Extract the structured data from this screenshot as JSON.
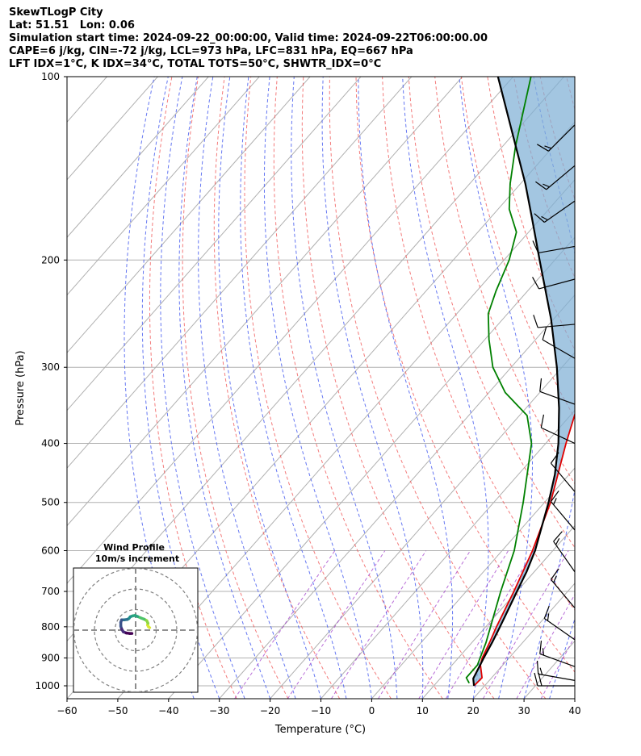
{
  "header": {
    "title": "SkewTLogP City",
    "location": "Lat: 51.51   Lon: 0.06",
    "times": "Simulation start time: 2024-09-22_00:00:00, Valid time: 2024-09-22T06:00:00.00",
    "indices1": "CAPE=6 j/kg, CIN=-72 j/kg, LCL=973 hPa, LFC=831 hPa, EQ=667 hPa",
    "indices2": "LFT IDX=1°C, K IDX=34°C, TOTAL TOTS=50°C, SHWTR_IDX=0°C"
  },
  "chart_data": {
    "type": "line",
    "xlabel": "Temperature (°C)",
    "ylabel": "Pressure (hPa)",
    "xlim": [
      -60,
      40
    ],
    "plim": [
      1050,
      100
    ],
    "xticks": [
      "−60",
      "−50",
      "−40",
      "−30",
      "−20",
      "−10",
      "0",
      "10",
      "20",
      "30",
      "40"
    ],
    "xtick_values": [
      -60,
      -50,
      -40,
      -30,
      -20,
      -10,
      0,
      10,
      20,
      30,
      40
    ],
    "yticks": [
      "100",
      "200",
      "300",
      "400",
      "500",
      "600",
      "700",
      "800",
      "900",
      "1000"
    ],
    "ytick_values": [
      100,
      200,
      300,
      400,
      500,
      600,
      700,
      800,
      900,
      1000
    ],
    "log_pressure_axis": true,
    "grid": true,
    "series": [
      {
        "role": "temperature",
        "color": "#e00000",
        "points": [
          [
            1000,
            17.9
          ],
          [
            970,
            18.1
          ],
          [
            925,
            15.6
          ],
          [
            900,
            14.7
          ],
          [
            850,
            13.5
          ],
          [
            800,
            12.1
          ],
          [
            700,
            9.4
          ],
          [
            600,
            6.0
          ],
          [
            500,
            1.2
          ],
          [
            450,
            -2.2
          ],
          [
            400,
            -6.0
          ],
          [
            350,
            -10.0
          ],
          [
            300,
            -14.2
          ],
          [
            275,
            -16.9
          ],
          [
            250,
            -21.8
          ],
          [
            230,
            -23.6
          ],
          [
            210,
            -24.8
          ],
          [
            200,
            -25.6
          ],
          [
            180,
            -28.8
          ],
          [
            160,
            -33.2
          ],
          [
            140,
            -37.6
          ],
          [
            120,
            -41.6
          ],
          [
            100,
            -47.8
          ]
        ]
      },
      {
        "role": "dewpoint",
        "color": "#008000",
        "points": [
          [
            990,
            16.5
          ],
          [
            970,
            15.0
          ],
          [
            925,
            15.0
          ],
          [
            850,
            12.8
          ],
          [
            700,
            6.8
          ],
          [
            600,
            2.4
          ],
          [
            500,
            -4.2
          ],
          [
            400,
            -12.8
          ],
          [
            360,
            -18.5
          ],
          [
            330,
            -26.8
          ],
          [
            300,
            -33.6
          ],
          [
            270,
            -39.2
          ],
          [
            245,
            -43.8
          ],
          [
            225,
            -46.2
          ],
          [
            200,
            -49.0
          ],
          [
            180,
            -52.4
          ],
          [
            165,
            -57.8
          ],
          [
            150,
            -62.0
          ],
          [
            130,
            -67.5
          ],
          [
            100,
            -76.5
          ]
        ]
      },
      {
        "role": "parcel",
        "color": "#000000",
        "points": [
          [
            1000,
            17.9
          ],
          [
            973,
            16.5
          ],
          [
            900,
            15.0
          ],
          [
            850,
            14.0
          ],
          [
            800,
            12.8
          ],
          [
            700,
            10.0
          ],
          [
            650,
            8.5
          ],
          [
            600,
            6.5
          ],
          [
            500,
            0.8
          ],
          [
            450,
            -2.8
          ],
          [
            400,
            -7.5
          ],
          [
            350,
            -13.5
          ],
          [
            300,
            -21.0
          ],
          [
            250,
            -30.5
          ],
          [
            200,
            -43.0
          ],
          [
            170,
            -52.0
          ],
          [
            150,
            -59.0
          ],
          [
            100,
            -83.0
          ]
        ]
      }
    ],
    "inset": {
      "title1": "Wind Profile",
      "title2": "10m/s increment",
      "rings_ms": [
        10,
        20,
        30
      ],
      "hodograph_uv": [
        [
          6.8,
          1.2
        ],
        [
          6.2,
          1.7
        ],
        [
          5.8,
          2.5
        ],
        [
          6.0,
          3.3
        ],
        [
          5.4,
          4.6
        ],
        [
          4.2,
          5.3
        ],
        [
          2.6,
          5.9
        ],
        [
          1.0,
          6.6
        ],
        [
          -0.3,
          7.1
        ],
        [
          -1.5,
          6.9
        ],
        [
          -2.6,
          6.5
        ],
        [
          -3.2,
          5.7
        ],
        [
          -4.0,
          5.2
        ],
        [
          -5.6,
          5.0
        ],
        [
          -6.8,
          5.0
        ],
        [
          -7.2,
          3.8
        ],
        [
          -7.2,
          1.9
        ],
        [
          -6.8,
          0.6
        ],
        [
          -6.0,
          -0.8
        ],
        [
          -4.5,
          -1.4
        ],
        [
          -2.8,
          -1.6
        ],
        [
          -1.8,
          -1.6
        ]
      ]
    },
    "barbs": [
      {
        "p": 120,
        "speed_kt": 15,
        "dir_deg": 225
      },
      {
        "p": 140,
        "speed_kt": 15,
        "dir_deg": 230
      },
      {
        "p": 160,
        "speed_kt": 15,
        "dir_deg": 235
      },
      {
        "p": 190,
        "speed_kt": 10,
        "dir_deg": 260
      },
      {
        "p": 215,
        "speed_kt": 10,
        "dir_deg": 255
      },
      {
        "p": 255,
        "speed_kt": 10,
        "dir_deg": 265
      },
      {
        "p": 290,
        "speed_kt": 10,
        "dir_deg": 300
      },
      {
        "p": 345,
        "speed_kt": 10,
        "dir_deg": 290
      },
      {
        "p": 400,
        "speed_kt": 10,
        "dir_deg": 295
      },
      {
        "p": 480,
        "speed_kt": 10,
        "dir_deg": 320
      },
      {
        "p": 555,
        "speed_kt": 15,
        "dir_deg": 320
      },
      {
        "p": 650,
        "speed_kt": 15,
        "dir_deg": 325
      },
      {
        "p": 745,
        "speed_kt": 15,
        "dir_deg": 320
      },
      {
        "p": 840,
        "speed_kt": 15,
        "dir_deg": 305
      },
      {
        "p": 930,
        "speed_kt": 15,
        "dir_deg": 290
      },
      {
        "p": 980,
        "speed_kt": 15,
        "dir_deg": 280
      },
      {
        "p": 1000,
        "speed_kt": 20,
        "dir_deg": 270
      }
    ]
  }
}
